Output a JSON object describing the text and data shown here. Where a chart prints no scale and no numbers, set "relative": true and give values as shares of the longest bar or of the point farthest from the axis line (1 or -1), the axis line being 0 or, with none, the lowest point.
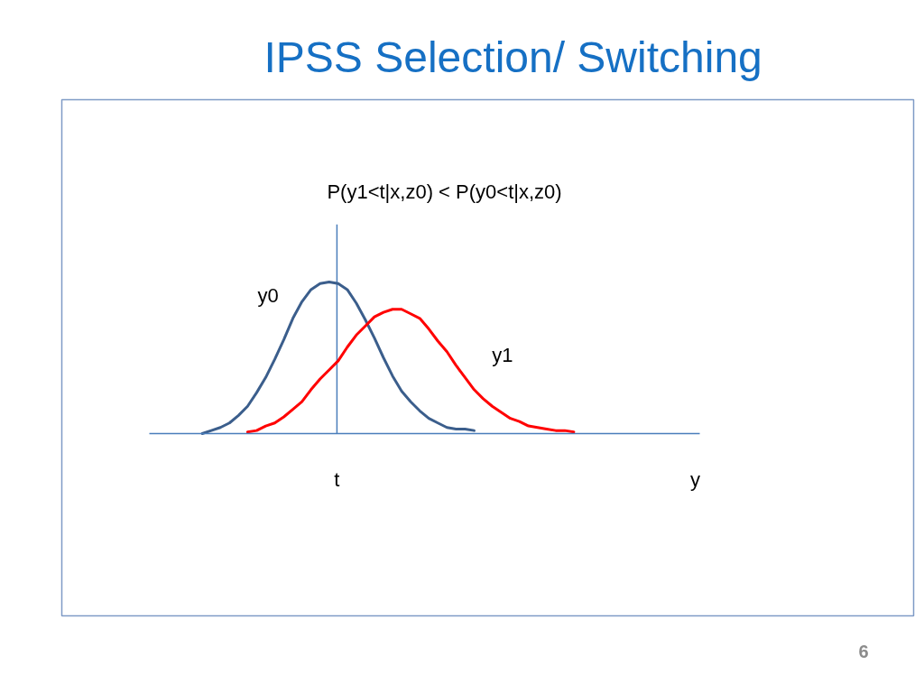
{
  "chart_data": {
    "type": "line",
    "title": "IPSS Selection/ Switching",
    "xlabel": "y",
    "relative": true,
    "categories": [
      null,
      null,
      null,
      null,
      null,
      null,
      null,
      null,
      null,
      null,
      null,
      null,
      null,
      null,
      null,
      null,
      null,
      null,
      null,
      null,
      null,
      null,
      null,
      null,
      null,
      null,
      null,
      null,
      null,
      null,
      null,
      null,
      null,
      null,
      null,
      null,
      null,
      null,
      null,
      null,
      null,
      null,
      null,
      null,
      null,
      null,
      null,
      null,
      null,
      null,
      null,
      null,
      null,
      null,
      null,
      null,
      null,
      null,
      null,
      null,
      null,
      null,
      null,
      null,
      null,
      null,
      null,
      null,
      null,
      null,
      null,
      null,
      null,
      null,
      null,
      null,
      null,
      null,
      null,
      null,
      null,
      null,
      null,
      null,
      null,
      null,
      null,
      null,
      null,
      null,
      null,
      null,
      null,
      null
    ],
    "series": [
      {
        "name": "y0",
        "color": "#3b5e8c",
        "values": [
          null,
          null,
          null,
          null,
          null,
          null,
          null,
          null,
          null,
          null,
          null,
          null,
          null,
          null,
          null,
          0.0,
          0.02,
          0.04,
          0.07,
          0.12,
          0.18,
          0.27,
          0.37,
          0.49,
          0.62,
          0.76,
          0.87,
          0.95,
          0.99,
          1.0,
          0.99,
          0.95,
          0.86,
          0.75,
          0.63,
          0.5,
          0.38,
          0.28,
          0.21,
          0.15,
          0.1,
          0.07,
          0.04,
          0.03,
          0.03,
          0.02,
          null,
          null,
          null,
          null,
          null,
          null,
          null,
          null,
          null,
          null,
          null,
          null,
          null,
          null,
          null,
          null,
          null,
          null,
          null,
          null,
          null,
          null,
          null,
          null,
          null,
          null,
          null,
          null,
          null,
          null,
          null,
          null,
          null,
          null,
          null,
          null,
          null,
          null,
          null,
          null,
          null,
          null,
          null,
          null,
          null,
          null,
          null,
          null
        ]
      },
      {
        "name": "y1",
        "color": "#ff0000",
        "values": [
          null,
          null,
          null,
          null,
          null,
          null,
          null,
          null,
          null,
          null,
          null,
          null,
          null,
          null,
          null,
          null,
          null,
          null,
          null,
          null,
          0.01,
          0.02,
          0.05,
          0.07,
          0.11,
          0.16,
          0.21,
          0.29,
          0.36,
          0.42,
          0.48,
          0.57,
          0.65,
          0.71,
          0.77,
          0.8,
          0.82,
          0.82,
          0.79,
          0.76,
          0.69,
          0.61,
          0.54,
          0.45,
          0.37,
          0.29,
          0.23,
          0.18,
          0.14,
          0.1,
          0.08,
          0.05,
          0.04,
          0.03,
          0.02,
          0.02,
          0.01,
          null,
          null,
          null,
          null,
          null,
          null,
          null,
          null,
          null,
          null,
          null,
          null,
          null,
          null,
          null,
          null,
          null,
          null,
          null,
          null,
          null,
          null,
          null,
          null,
          null,
          null,
          null,
          null,
          null,
          null,
          null,
          null,
          null,
          null,
          null,
          null,
          null
        ]
      }
    ],
    "annotations": [
      "P(y1<t|x,z0) < P(y0<t|x,z0)",
      "t",
      "6"
    ]
  }
}
